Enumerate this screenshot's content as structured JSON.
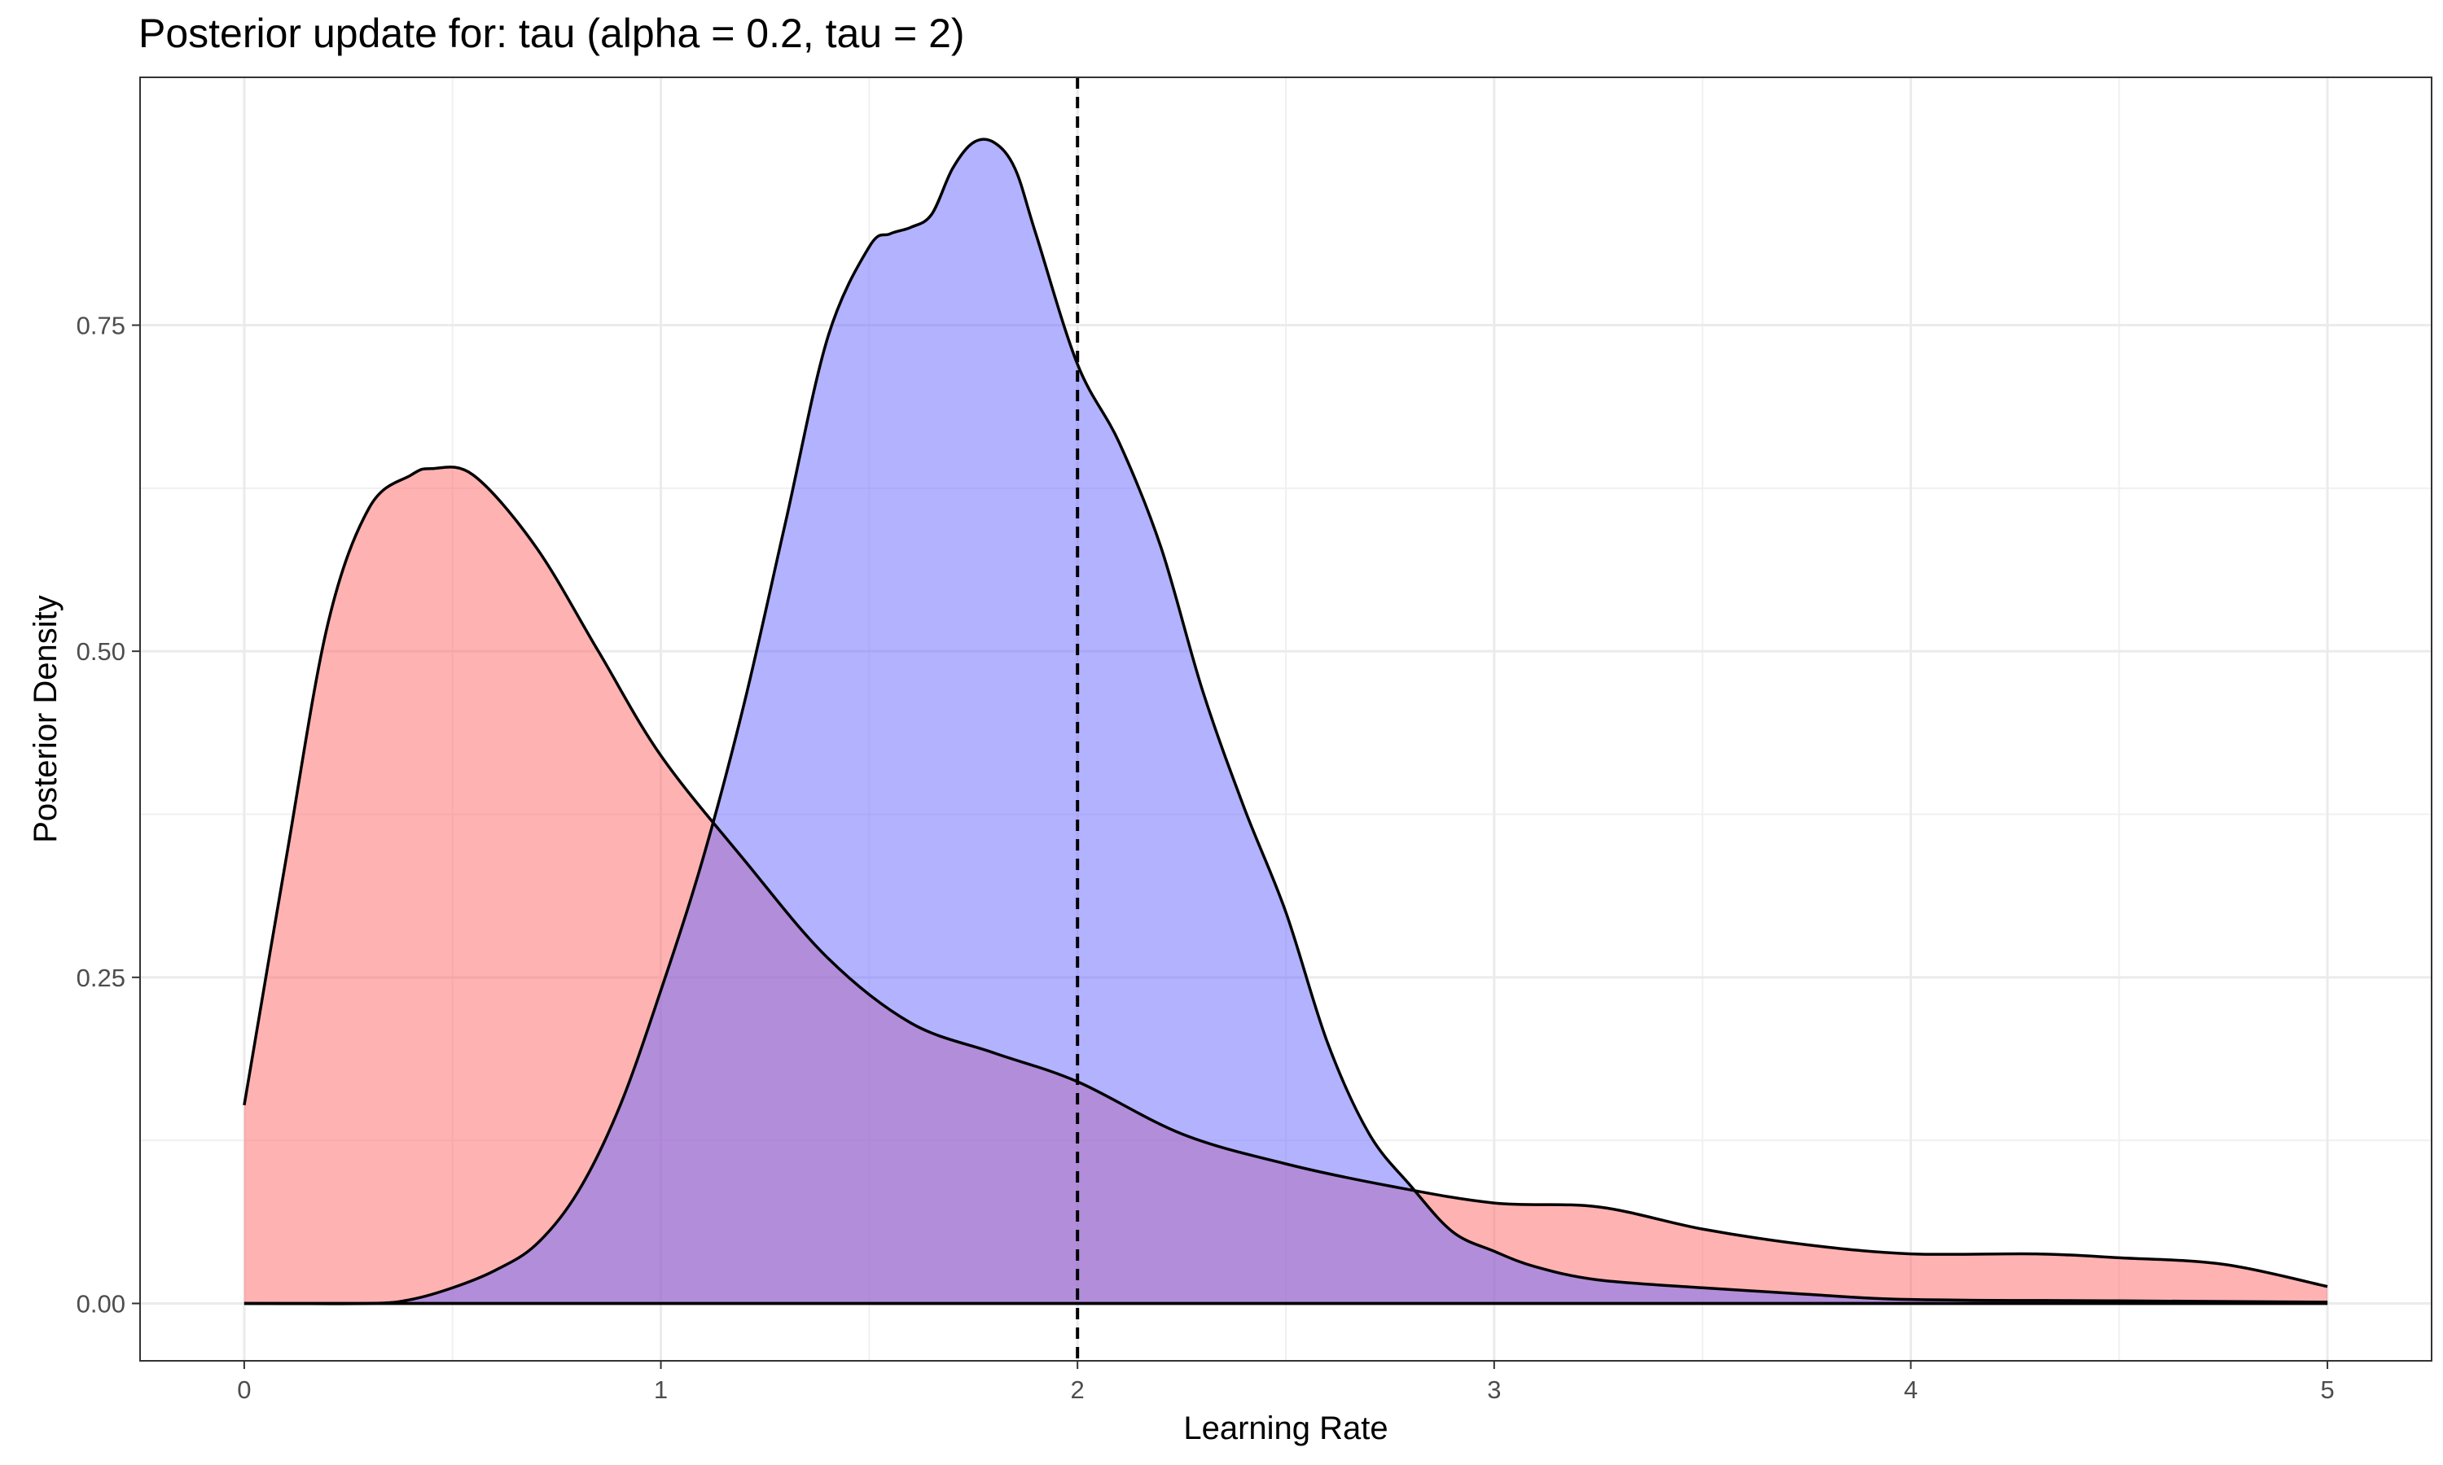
{
  "chart_data": {
    "type": "area",
    "title": "Posterior update for: tau (alpha = 0.2, tau = 2)",
    "xlabel": "Learning Rate",
    "ylabel": "Posterior Density",
    "xlim": [
      -0.25,
      5.25
    ],
    "ylim": [
      -0.044,
      0.94
    ],
    "xticks": [
      0,
      1,
      2,
      3,
      4,
      5
    ],
    "xtick_labels": [
      "0",
      "1",
      "2",
      "3",
      "4",
      "5"
    ],
    "yticks": [
      0.0,
      0.25,
      0.5,
      0.75
    ],
    "ytick_labels": [
      "0.00",
      "0.25",
      "0.50",
      "0.75"
    ],
    "grid": true,
    "reference_line": {
      "x": 2,
      "style": "dashed"
    },
    "series": [
      {
        "fill": "#ff6b6b",
        "x": [
          0,
          0.1,
          0.2,
          0.3,
          0.4,
          0.45,
          0.55,
          0.7,
          0.85,
          1.0,
          1.2,
          1.4,
          1.6,
          1.8,
          2.0,
          2.25,
          2.5,
          2.75,
          3.0,
          3.25,
          3.5,
          3.75,
          4.0,
          4.3,
          4.5,
          4.75,
          5.0
        ],
        "values": [
          0.152,
          0.34,
          0.52,
          0.61,
          0.635,
          0.64,
          0.635,
          0.58,
          0.5,
          0.42,
          0.34,
          0.265,
          0.215,
          0.192,
          0.17,
          0.13,
          0.107,
          0.09,
          0.077,
          0.074,
          0.057,
          0.045,
          0.038,
          0.038,
          0.035,
          0.03,
          0.013
        ]
      },
      {
        "fill": "#6b6bff",
        "x": [
          0,
          0.3,
          0.4,
          0.5,
          0.6,
          0.7,
          0.8,
          0.9,
          1.0,
          1.1,
          1.2,
          1.3,
          1.4,
          1.5,
          1.55,
          1.6,
          1.65,
          1.7,
          1.75,
          1.8,
          1.85,
          1.9,
          2.0,
          2.1,
          2.2,
          2.3,
          2.4,
          2.5,
          2.6,
          2.7,
          2.8,
          2.9,
          3.0,
          3.1,
          3.25,
          3.5,
          3.75,
          4.0,
          4.5,
          5.0
        ],
        "values": [
          0.0,
          0.0,
          0.003,
          0.012,
          0.025,
          0.045,
          0.085,
          0.15,
          0.24,
          0.34,
          0.46,
          0.6,
          0.74,
          0.81,
          0.82,
          0.825,
          0.835,
          0.87,
          0.89,
          0.89,
          0.87,
          0.82,
          0.72,
          0.66,
          0.58,
          0.47,
          0.38,
          0.3,
          0.2,
          0.13,
          0.09,
          0.055,
          0.04,
          0.028,
          0.018,
          0.012,
          0.007,
          0.003,
          0.002,
          0.001
        ]
      }
    ]
  }
}
